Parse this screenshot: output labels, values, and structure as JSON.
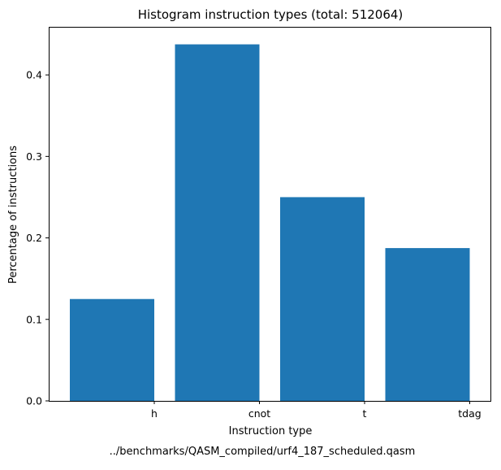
{
  "chart_data": {
    "type": "bar",
    "title": "Histogram instruction types (total: 512064)",
    "xlabel": "Instruction type",
    "ylabel": "Percentage of instructions",
    "caption": "../benchmarks/QASM_compiled/urf4_187_scheduled.qasm",
    "categories": [
      "h",
      "cnot",
      "t",
      "tdag"
    ],
    "values": [
      0.125,
      0.4375,
      0.25,
      0.1875
    ],
    "yticks": [
      0.0,
      0.1,
      0.2,
      0.3,
      0.4
    ],
    "ytick_labels": [
      "0.0",
      "0.1",
      "0.2",
      "0.3",
      "0.4"
    ],
    "ylim": [
      0,
      0.459
    ],
    "grid": false,
    "legend": "none",
    "bar_color": "#1f77b4"
  }
}
